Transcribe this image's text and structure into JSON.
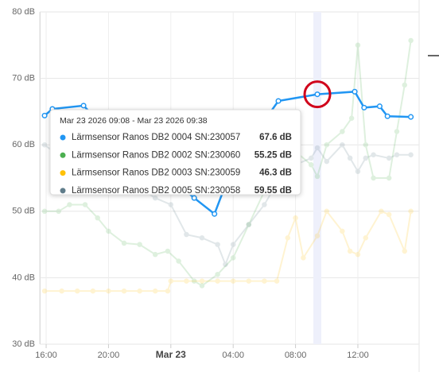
{
  "chart_data": {
    "type": "line",
    "ylim": [
      30,
      80
    ],
    "yticks": [
      {
        "value": 30,
        "label": "30 dB"
      },
      {
        "value": 40,
        "label": "40 dB"
      },
      {
        "value": 50,
        "label": "50 dB"
      },
      {
        "value": 60,
        "label": "60 dB"
      },
      {
        "value": 70,
        "label": "70 dB"
      },
      {
        "value": 80,
        "label": "80 dB"
      }
    ],
    "xlim": [
      15.6,
      39.9
    ],
    "xticks": [
      {
        "value": 16,
        "label": "16:00"
      },
      {
        "value": 20,
        "label": "20:00"
      },
      {
        "value": 24,
        "label": "Mar 23"
      },
      {
        "value": 28,
        "label": "04:00"
      },
      {
        "value": 32,
        "label": "08:00"
      },
      {
        "value": 36,
        "label": "12:00"
      }
    ],
    "grid": true,
    "highlight_series": 0,
    "series": [
      {
        "name": "Lärmsensor Ranos DB2 0004 SN:230057",
        "color": "#2196f3",
        "x": [
          15.9,
          16.4,
          18.4,
          20,
          22,
          24,
          25.5,
          26.8,
          28,
          29.5,
          30.9,
          33.4,
          35.8,
          36.4,
          37.4,
          37.9,
          39.4
        ],
        "values": [
          64.4,
          65.4,
          65.9,
          62,
          58,
          55,
          52,
          49.6,
          57,
          62,
          66.6,
          67.6,
          68.0,
          65.6,
          65.8,
          64.3,
          64.2
        ]
      },
      {
        "name": "Lärmsensor Ranos DB2 0002 SN:230060",
        "color": "#4caf50",
        "x": [
          15.9,
          16.8,
          17.5,
          18.5,
          19.3,
          20,
          21,
          22,
          23,
          23.8,
          24.5,
          25.5,
          26,
          27,
          28,
          29,
          30,
          31,
          32,
          33,
          33.4,
          34,
          35,
          35.6,
          36,
          36.5,
          37,
          38,
          38.5,
          39,
          39.4
        ],
        "values": [
          50,
          50,
          51,
          51,
          49,
          47,
          45.2,
          45,
          43.5,
          44,
          42.5,
          39.5,
          38.8,
          40.5,
          43,
          48,
          53,
          57,
          59,
          57,
          55.25,
          60,
          62,
          64,
          75,
          60,
          55,
          55,
          62,
          69,
          75.7
        ]
      },
      {
        "name": "Lärmsensor Ranos DB2 0003 SN:230059",
        "color": "#ffc107",
        "x": [
          15.9,
          17,
          18,
          19,
          20,
          21,
          22,
          23,
          23.8,
          24,
          25,
          26,
          27,
          28,
          29,
          30,
          30.8,
          31.5,
          32,
          32.5,
          33.4,
          34,
          35,
          35.5,
          36,
          36.5,
          37.5,
          38,
          39,
          39.4
        ],
        "values": [
          38,
          38,
          38,
          38,
          38,
          38,
          38,
          38,
          38,
          39.5,
          39.5,
          39.5,
          39.5,
          39.5,
          39.5,
          39.5,
          39.5,
          46,
          49,
          43,
          46.3,
          50,
          47,
          44,
          43.5,
          46,
          50,
          49.5,
          44,
          50
        ]
      },
      {
        "name": "Lärmsensor Ranos DB2 0005 SN:230058",
        "color": "#607d8b",
        "x": [
          15.9,
          17,
          18,
          19,
          20,
          21,
          22,
          23,
          24,
          25,
          26,
          27,
          27.5,
          28,
          29,
          30,
          31,
          32,
          33,
          33.4,
          34,
          35,
          35.5,
          36,
          36.5,
          37,
          38,
          38.5,
          39.4
        ],
        "values": [
          60,
          58,
          57,
          58,
          56,
          55,
          53.5,
          52,
          51,
          46.5,
          46,
          45,
          42,
          45,
          48,
          51,
          55,
          57,
          58,
          59.55,
          57.5,
          60,
          58,
          56,
          58,
          58.5,
          58,
          58.5,
          58.5
        ]
      }
    ],
    "tooltip": {
      "title": "Mar 23 2026 09:08 - Mar 23 2026 09:38",
      "hover_x": 33.4,
      "values": [
        67.6,
        55.25,
        46.3,
        59.55
      ],
      "value_labels": [
        "67.6 dB",
        "55.25 dB",
        "46.3 dB",
        "59.55 dB"
      ]
    }
  }
}
